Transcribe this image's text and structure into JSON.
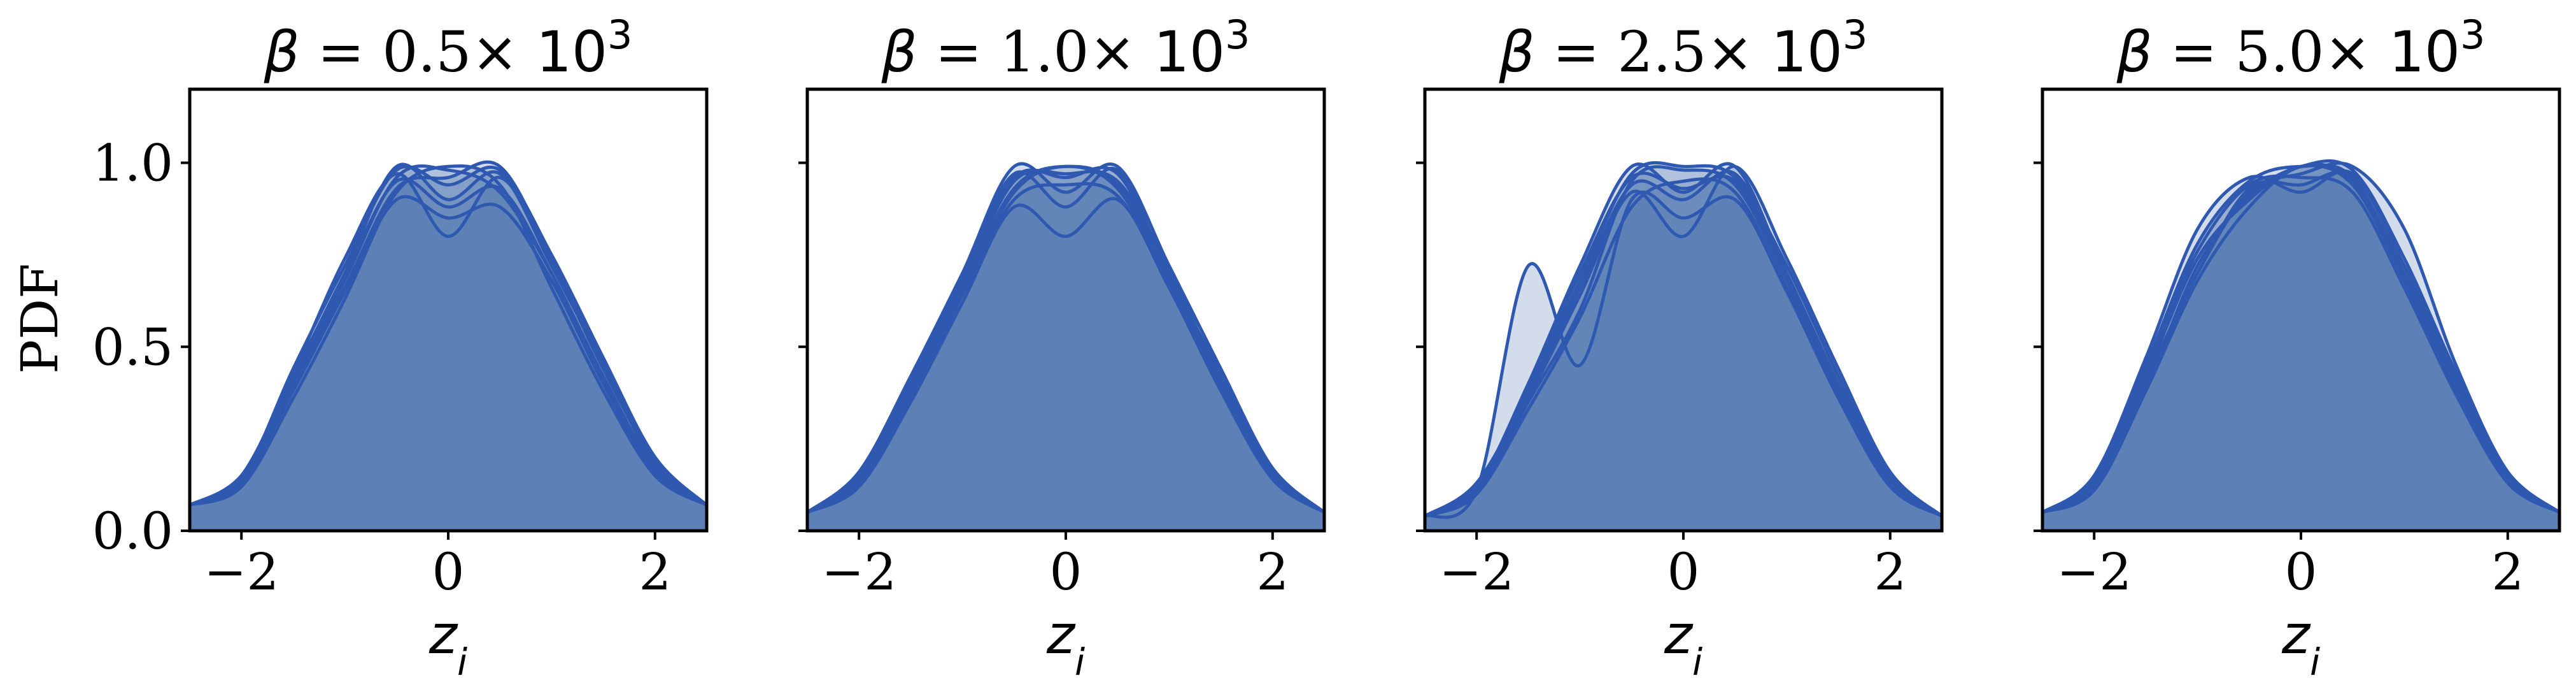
{
  "figure": {
    "ylabel": "PDF",
    "xlabel_sym": "z",
    "xlabel_sub": "i",
    "title_symbol": "β",
    "title_times": "×",
    "title_base": "10",
    "title_exp": "3",
    "colors": {
      "line": "#2f59b0",
      "fill": "#4c72b0"
    }
  },
  "chart_data": [
    {
      "type": "area",
      "title_value": "0.5",
      "xlim": [
        -2.5,
        2.5
      ],
      "ylim": [
        0,
        1.2
      ],
      "xticks": [
        -2,
        0,
        2
      ],
      "yticks": [
        0.0,
        0.5,
        1.0
      ],
      "grid": false,
      "x": [
        -2.5,
        -2.0,
        -1.5,
        -1.0,
        -0.5,
        0.0,
        0.5,
        1.0,
        1.5,
        2.0,
        2.5
      ],
      "series": [
        {
          "values": [
            0.07,
            0.14,
            0.44,
            0.72,
            0.98,
            0.94,
            0.98,
            0.75,
            0.47,
            0.2,
            0.07
          ]
        },
        {
          "values": [
            0.07,
            0.15,
            0.4,
            0.68,
            0.96,
            0.98,
            0.92,
            0.7,
            0.42,
            0.17,
            0.07
          ]
        },
        {
          "values": [
            0.07,
            0.13,
            0.38,
            0.65,
            0.9,
            0.85,
            0.88,
            0.68,
            0.4,
            0.16,
            0.07
          ]
        },
        {
          "values": [
            0.07,
            0.14,
            0.42,
            0.7,
            0.99,
            0.9,
            0.97,
            0.72,
            0.45,
            0.18,
            0.07
          ]
        },
        {
          "values": [
            0.07,
            0.12,
            0.36,
            0.63,
            0.92,
            0.99,
            0.94,
            0.66,
            0.38,
            0.15,
            0.07
          ]
        },
        {
          "values": [
            0.07,
            0.15,
            0.43,
            0.74,
            0.97,
            0.8,
            0.96,
            0.73,
            0.44,
            0.19,
            0.07
          ]
        },
        {
          "values": [
            0.07,
            0.13,
            0.39,
            0.66,
            0.93,
            0.96,
            0.99,
            0.74,
            0.46,
            0.18,
            0.07
          ]
        },
        {
          "values": [
            0.07,
            0.14,
            0.41,
            0.69,
            0.95,
            0.88,
            0.93,
            0.7,
            0.41,
            0.17,
            0.07
          ]
        }
      ]
    },
    {
      "type": "area",
      "title_value": "1.0",
      "xlim": [
        -2.5,
        2.5
      ],
      "ylim": [
        0,
        1.2
      ],
      "xticks": [
        -2,
        0,
        2
      ],
      "yticks": [
        0.0,
        0.5,
        1.0
      ],
      "grid": false,
      "x": [
        -2.5,
        -2.0,
        -1.5,
        -1.0,
        -0.5,
        0.0,
        0.5,
        1.0,
        1.5,
        2.0,
        2.5
      ],
      "series": [
        {
          "values": [
            0.05,
            0.15,
            0.4,
            0.68,
            0.96,
            0.96,
            0.97,
            0.7,
            0.42,
            0.16,
            0.05
          ]
        },
        {
          "values": [
            0.05,
            0.13,
            0.37,
            0.65,
            0.92,
            0.99,
            0.93,
            0.68,
            0.4,
            0.15,
            0.05
          ]
        },
        {
          "values": [
            0.05,
            0.16,
            0.42,
            0.7,
            0.99,
            0.92,
            0.99,
            0.72,
            0.44,
            0.17,
            0.05
          ]
        },
        {
          "values": [
            0.05,
            0.12,
            0.35,
            0.62,
            0.88,
            0.8,
            0.9,
            0.66,
            0.38,
            0.14,
            0.05
          ]
        },
        {
          "values": [
            0.05,
            0.14,
            0.39,
            0.67,
            0.95,
            0.97,
            0.95,
            0.71,
            0.41,
            0.16,
            0.05
          ]
        },
        {
          "values": [
            0.05,
            0.15,
            0.41,
            0.69,
            0.97,
            0.88,
            0.98,
            0.69,
            0.43,
            0.17,
            0.05
          ]
        },
        {
          "values": [
            0.05,
            0.13,
            0.36,
            0.64,
            0.9,
            0.94,
            0.91,
            0.67,
            0.39,
            0.15,
            0.05
          ]
        },
        {
          "values": [
            0.05,
            0.14,
            0.38,
            0.66,
            0.93,
            0.99,
            0.94,
            0.7,
            0.4,
            0.16,
            0.05
          ]
        }
      ]
    },
    {
      "type": "area",
      "title_value": "2.5",
      "xlim": [
        -2.5,
        2.5
      ],
      "ylim": [
        0,
        1.2
      ],
      "xticks": [
        -2,
        0,
        2
      ],
      "yticks": [
        0.0,
        0.5,
        1.0
      ],
      "grid": false,
      "x": [
        -2.5,
        -2.0,
        -1.5,
        -1.0,
        -0.5,
        0.0,
        0.5,
        1.0,
        1.5,
        2.0,
        2.5
      ],
      "series": [
        {
          "values": [
            0.04,
            0.12,
            0.4,
            0.72,
            0.99,
            0.92,
            0.99,
            0.7,
            0.4,
            0.14,
            0.04
          ]
        },
        {
          "values": [
            0.04,
            0.1,
            0.35,
            0.6,
            0.95,
            0.98,
            0.94,
            0.68,
            0.38,
            0.13,
            0.04
          ]
        },
        {
          "values": [
            0.04,
            0.11,
            0.72,
            0.45,
            0.9,
            0.85,
            0.9,
            0.65,
            0.36,
            0.12,
            0.04
          ]
        },
        {
          "values": [
            0.04,
            0.13,
            0.38,
            0.68,
            0.97,
            0.99,
            0.96,
            0.72,
            0.42,
            0.15,
            0.04
          ]
        },
        {
          "values": [
            0.04,
            0.12,
            0.36,
            0.64,
            0.92,
            0.8,
            0.99,
            0.74,
            0.44,
            0.16,
            0.04
          ]
        },
        {
          "values": [
            0.04,
            0.1,
            0.33,
            0.58,
            0.88,
            0.95,
            0.92,
            0.66,
            0.37,
            0.13,
            0.04
          ]
        },
        {
          "values": [
            0.04,
            0.11,
            0.37,
            0.66,
            0.94,
            0.9,
            0.97,
            0.7,
            0.4,
            0.14,
            0.04
          ]
        },
        {
          "values": [
            0.04,
            0.12,
            0.39,
            0.7,
            0.96,
            0.93,
            0.95,
            0.69,
            0.39,
            0.14,
            0.04
          ]
        }
      ]
    },
    {
      "type": "area",
      "title_value": "5.0",
      "xlim": [
        -2.5,
        2.5
      ],
      "ylim": [
        0,
        1.2
      ],
      "xticks": [
        -2,
        0,
        2
      ],
      "yticks": [
        0.0,
        0.5,
        1.0
      ],
      "grid": false,
      "x": [
        -2.5,
        -2.0,
        -1.5,
        -1.0,
        -0.5,
        0.0,
        0.5,
        1.0,
        1.5,
        2.0,
        2.5
      ],
      "series": [
        {
          "values": [
            0.05,
            0.14,
            0.45,
            0.78,
            0.95,
            0.99,
            0.96,
            0.7,
            0.4,
            0.15,
            0.05
          ]
        },
        {
          "values": [
            0.05,
            0.12,
            0.4,
            0.7,
            0.92,
            0.97,
            0.99,
            0.82,
            0.45,
            0.16,
            0.05
          ]
        },
        {
          "values": [
            0.05,
            0.13,
            0.42,
            0.74,
            0.9,
            0.99,
            0.94,
            0.68,
            0.38,
            0.14,
            0.05
          ]
        },
        {
          "values": [
            0.05,
            0.15,
            0.47,
            0.82,
            0.96,
            0.92,
            0.97,
            0.72,
            0.42,
            0.15,
            0.05
          ]
        },
        {
          "values": [
            0.05,
            0.11,
            0.38,
            0.68,
            0.88,
            0.99,
            0.95,
            0.7,
            0.41,
            0.15,
            0.05
          ]
        },
        {
          "values": [
            0.05,
            0.14,
            0.44,
            0.76,
            0.94,
            0.96,
            0.92,
            0.66,
            0.37,
            0.13,
            0.05
          ]
        },
        {
          "values": [
            0.05,
            0.12,
            0.39,
            0.72,
            0.91,
            0.99,
            0.98,
            0.74,
            0.43,
            0.16,
            0.05
          ]
        },
        {
          "values": [
            0.05,
            0.13,
            0.41,
            0.7,
            0.93,
            0.94,
            0.96,
            0.69,
            0.39,
            0.14,
            0.05
          ]
        }
      ]
    }
  ]
}
